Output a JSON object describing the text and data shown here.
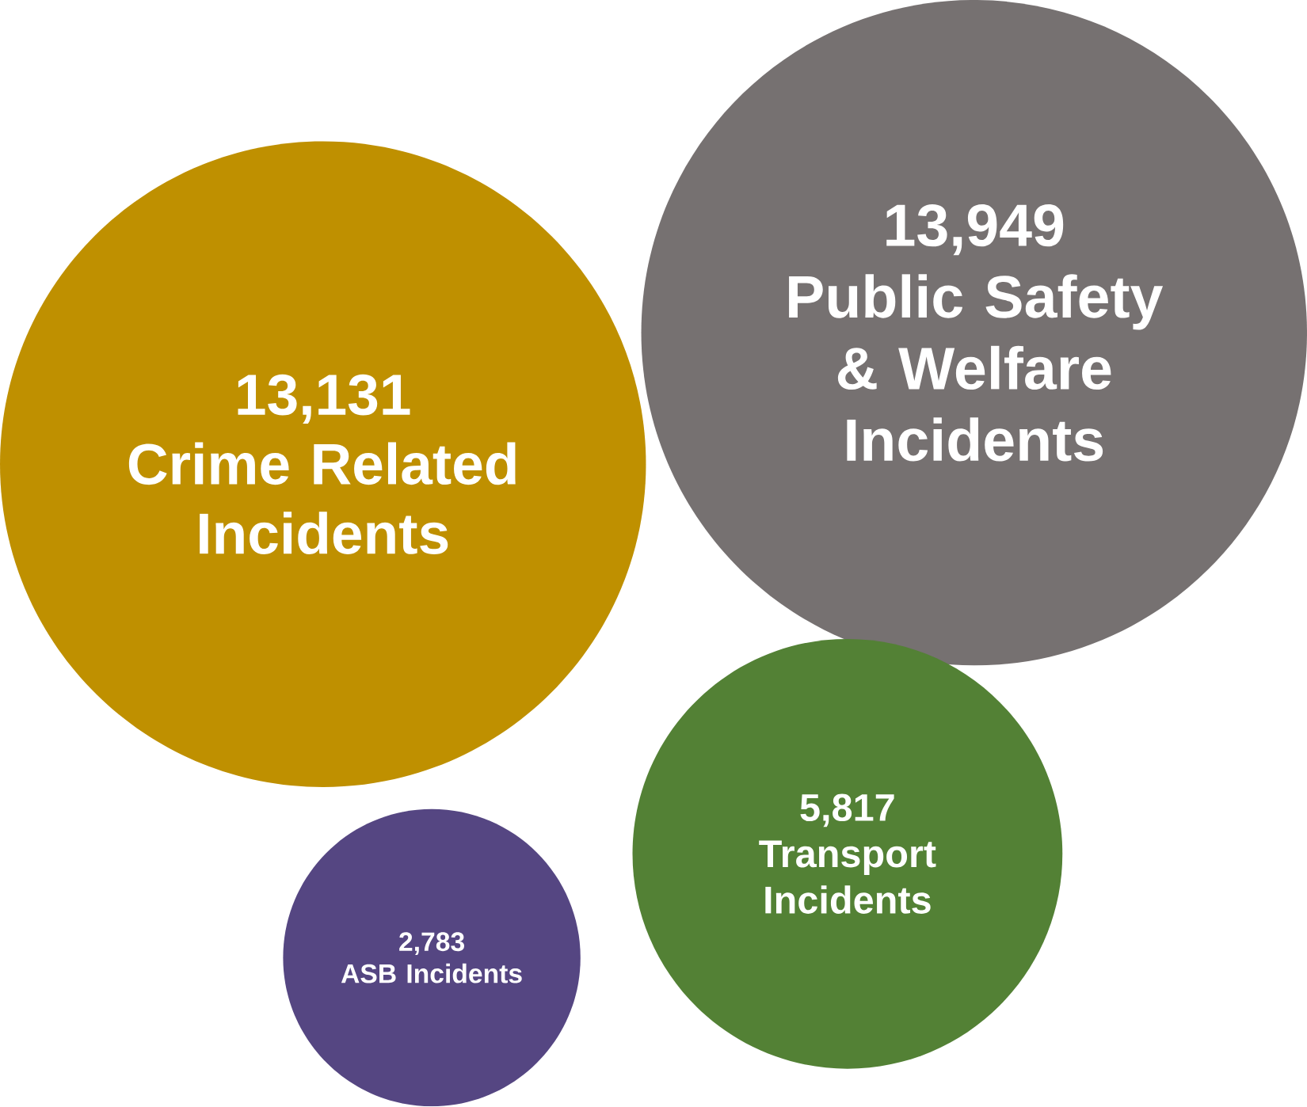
{
  "chart_data": {
    "type": "other",
    "categories": [
      "Crime Related Incidents",
      "Public Safety & Welfare Incidents",
      "Transport Incidents",
      "ASB Incidents"
    ],
    "values": [
      13131,
      13949,
      5817,
      2783
    ],
    "value_labels": [
      "13,131",
      "13,949",
      "5,817",
      "2,783"
    ],
    "colors": [
      "#bf9000",
      "#767171",
      "#538135",
      "#554682"
    ]
  }
}
